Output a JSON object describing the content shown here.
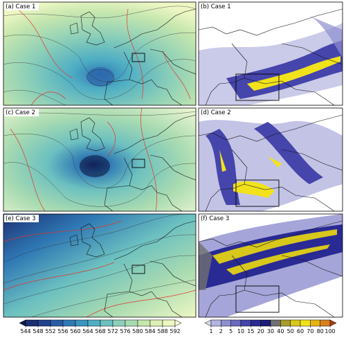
{
  "panels": [
    {
      "label": "(a) Case 1"
    },
    {
      "label": "(b) Case 1"
    },
    {
      "label": "(c) Case 2"
    },
    {
      "label": "(d) Case 2"
    },
    {
      "label": "(e) Case 3"
    },
    {
      "label": "(f) Case 3"
    }
  ],
  "colorbars": [
    {
      "ticks": [
        544,
        548,
        552,
        556,
        560,
        564,
        568,
        572,
        576,
        580,
        584,
        588,
        592
      ],
      "colors": [
        "#0b1a4a",
        "#1c2f72",
        "#23428f",
        "#2a5ca6",
        "#2f79b5",
        "#3a94c0",
        "#4faec4",
        "#6cc0c0",
        "#8ccfb8",
        "#a9dbb1",
        "#c5e6ae",
        "#ddf0b4",
        "#eef7c4",
        "#fafcd8"
      ]
    },
    {
      "ticks": [
        1,
        2,
        5,
        10,
        15,
        20,
        30,
        40,
        50,
        60,
        70,
        80,
        100
      ],
      "colors": [
        "#d8d8ef",
        "#b4b4e0",
        "#8e8ed0",
        "#6a6ac0",
        "#4545ab",
        "#2a2a94",
        "#1b1b78",
        "#707070",
        "#a89c2c",
        "#d8c81c",
        "#f2e21c",
        "#e8b414",
        "#d8801c",
        "#b03a0c"
      ]
    }
  ]
}
